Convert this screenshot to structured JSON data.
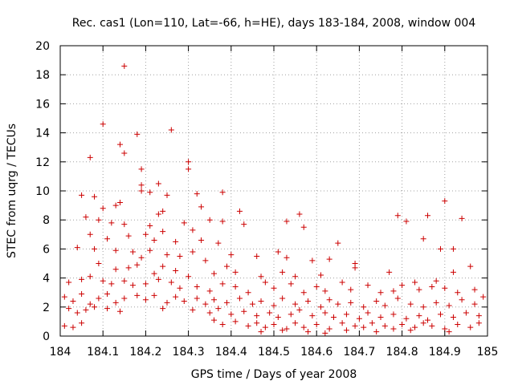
{
  "chart_data": {
    "type": "scatter",
    "title": "Rec. cas1 (Lon=110, Lat=-66, h=HE), days 183-184, 2008, window 004",
    "xlabel": "GPS time / Days of year 2008",
    "ylabel": "STEC from uqrg / TECUs",
    "xlim": [
      184,
      185
    ],
    "ylim": [
      0,
      20
    ],
    "xticks": [
      "184",
      "184.1",
      "184.2",
      "184.3",
      "184.4",
      "184.5",
      "184.6",
      "184.7",
      "184.8",
      "184.9",
      "185"
    ],
    "yticks": [
      "0",
      "2",
      "4",
      "6",
      "8",
      "10",
      "12",
      "14",
      "16",
      "18",
      "20"
    ],
    "grid": true,
    "marker": "+",
    "color": "#cc0000",
    "series": [
      {
        "name": "STEC",
        "points": [
          [
            184.15,
            18.6
          ],
          [
            184.1,
            14.6
          ],
          [
            184.26,
            14.2
          ],
          [
            184.18,
            13.9
          ],
          [
            184.14,
            13.2
          ],
          [
            184.15,
            12.6
          ],
          [
            184.07,
            12.3
          ],
          [
            184.3,
            12.0
          ],
          [
            184.3,
            11.5
          ],
          [
            184.19,
            11.5
          ],
          [
            184.19,
            10.4
          ],
          [
            184.23,
            10.5
          ],
          [
            184.19,
            10.0
          ],
          [
            184.21,
            9.9
          ],
          [
            184.05,
            9.7
          ],
          [
            184.25,
            9.7
          ],
          [
            184.32,
            9.8
          ],
          [
            184.38,
            9.9
          ],
          [
            184.08,
            9.6
          ],
          [
            184.14,
            9.2
          ],
          [
            184.13,
            9.0
          ],
          [
            184.33,
            8.9
          ],
          [
            184.1,
            8.8
          ],
          [
            184.24,
            8.6
          ],
          [
            184.23,
            8.4
          ],
          [
            184.42,
            8.6
          ],
          [
            184.56,
            8.4
          ],
          [
            184.79,
            8.3
          ],
          [
            184.86,
            8.3
          ],
          [
            184.94,
            8.1
          ],
          [
            184.9,
            9.3
          ],
          [
            184.06,
            8.2
          ],
          [
            184.09,
            8.0
          ],
          [
            184.12,
            7.8
          ],
          [
            184.15,
            7.7
          ],
          [
            184.29,
            7.8
          ],
          [
            184.31,
            7.3
          ],
          [
            184.35,
            8.0
          ],
          [
            184.38,
            7.9
          ],
          [
            184.43,
            7.7
          ],
          [
            184.53,
            7.9
          ],
          [
            184.57,
            7.5
          ],
          [
            184.81,
            7.9
          ],
          [
            184.21,
            7.6
          ],
          [
            184.24,
            7.2
          ],
          [
            184.07,
            7.0
          ],
          [
            184.11,
            6.7
          ],
          [
            184.16,
            6.9
          ],
          [
            184.2,
            7.0
          ],
          [
            184.22,
            6.6
          ],
          [
            184.27,
            6.5
          ],
          [
            184.33,
            6.6
          ],
          [
            184.37,
            6.4
          ],
          [
            184.65,
            6.4
          ],
          [
            184.85,
            6.7
          ],
          [
            184.04,
            6.1
          ],
          [
            184.08,
            6.0
          ],
          [
            184.13,
            5.9
          ],
          [
            184.17,
            5.8
          ],
          [
            184.19,
            5.4
          ],
          [
            184.21,
            5.9
          ],
          [
            184.25,
            5.6
          ],
          [
            184.28,
            5.5
          ],
          [
            184.31,
            5.8
          ],
          [
            184.34,
            5.2
          ],
          [
            184.4,
            5.6
          ],
          [
            184.46,
            5.5
          ],
          [
            184.51,
            5.8
          ],
          [
            184.53,
            5.4
          ],
          [
            184.59,
            5.2
          ],
          [
            184.63,
            5.3
          ],
          [
            184.69,
            5.0
          ],
          [
            184.89,
            6.0
          ],
          [
            184.92,
            6.0
          ],
          [
            184.96,
            4.8
          ],
          [
            184.09,
            5.0
          ],
          [
            184.13,
            4.6
          ],
          [
            184.16,
            4.7
          ],
          [
            184.18,
            4.9
          ],
          [
            184.22,
            4.3
          ],
          [
            184.24,
            4.8
          ],
          [
            184.27,
            4.5
          ],
          [
            184.3,
            4.1
          ],
          [
            184.36,
            4.3
          ],
          [
            184.39,
            4.8
          ],
          [
            184.41,
            4.4
          ],
          [
            184.47,
            4.1
          ],
          [
            184.52,
            4.4
          ],
          [
            184.55,
            4.1
          ],
          [
            184.61,
            4.2
          ],
          [
            184.69,
            4.7
          ],
          [
            184.77,
            4.4
          ],
          [
            184.83,
            3.7
          ],
          [
            184.88,
            3.8
          ],
          [
            184.92,
            4.4
          ],
          [
            184.02,
            3.7
          ],
          [
            184.05,
            3.9
          ],
          [
            184.07,
            4.1
          ],
          [
            184.1,
            3.8
          ],
          [
            184.12,
            3.6
          ],
          [
            184.15,
            3.8
          ],
          [
            184.17,
            3.5
          ],
          [
            184.2,
            3.6
          ],
          [
            184.23,
            3.9
          ],
          [
            184.26,
            3.7
          ],
          [
            184.28,
            3.3
          ],
          [
            184.32,
            3.4
          ],
          [
            184.35,
            3.1
          ],
          [
            184.38,
            3.6
          ],
          [
            184.41,
            3.4
          ],
          [
            184.44,
            3.0
          ],
          [
            184.48,
            3.7
          ],
          [
            184.5,
            3.3
          ],
          [
            184.54,
            3.6
          ],
          [
            184.57,
            3.0
          ],
          [
            184.6,
            3.4
          ],
          [
            184.62,
            3.1
          ],
          [
            184.66,
            3.7
          ],
          [
            184.68,
            3.2
          ],
          [
            184.72,
            3.5
          ],
          [
            184.75,
            3.0
          ],
          [
            184.78,
            3.1
          ],
          [
            184.8,
            3.5
          ],
          [
            184.84,
            3.2
          ],
          [
            184.87,
            3.4
          ],
          [
            184.9,
            3.3
          ],
          [
            184.93,
            3.0
          ],
          [
            184.97,
            3.2
          ],
          [
            184.01,
            2.7
          ],
          [
            184.03,
            2.4
          ],
          [
            184.05,
            2.9
          ],
          [
            184.07,
            2.2
          ],
          [
            184.09,
            2.6
          ],
          [
            184.11,
            2.9
          ],
          [
            184.13,
            2.3
          ],
          [
            184.15,
            2.6
          ],
          [
            184.18,
            2.8
          ],
          [
            184.2,
            2.5
          ],
          [
            184.22,
            2.8
          ],
          [
            184.25,
            2.3
          ],
          [
            184.27,
            2.7
          ],
          [
            184.29,
            2.4
          ],
          [
            184.32,
            2.6
          ],
          [
            184.34,
            2.2
          ],
          [
            184.36,
            2.5
          ],
          [
            184.39,
            2.3
          ],
          [
            184.42,
            2.6
          ],
          [
            184.45,
            2.2
          ],
          [
            184.47,
            2.4
          ],
          [
            184.5,
            2.1
          ],
          [
            184.52,
            2.6
          ],
          [
            184.55,
            2.2
          ],
          [
            184.58,
            2.4
          ],
          [
            184.61,
            2.0
          ],
          [
            184.63,
            2.5
          ],
          [
            184.65,
            2.2
          ],
          [
            184.68,
            2.3
          ],
          [
            184.71,
            2.0
          ],
          [
            184.74,
            2.4
          ],
          [
            184.76,
            2.1
          ],
          [
            184.79,
            2.6
          ],
          [
            184.82,
            2.2
          ],
          [
            184.85,
            2.0
          ],
          [
            184.88,
            2.3
          ],
          [
            184.91,
            2.1
          ],
          [
            184.94,
            2.5
          ],
          [
            184.97,
            2.2
          ],
          [
            184.99,
            2.7
          ],
          [
            184.02,
            1.9
          ],
          [
            184.04,
            1.6
          ],
          [
            184.06,
            1.8
          ],
          [
            184.08,
            2.0
          ],
          [
            184.11,
            1.9
          ],
          [
            184.14,
            1.7
          ],
          [
            184.24,
            1.9
          ],
          [
            184.31,
            1.8
          ],
          [
            184.35,
            1.6
          ],
          [
            184.37,
            1.9
          ],
          [
            184.4,
            1.5
          ],
          [
            184.43,
            1.7
          ],
          [
            184.46,
            1.4
          ],
          [
            184.49,
            1.6
          ],
          [
            184.51,
            1.3
          ],
          [
            184.54,
            1.5
          ],
          [
            184.56,
            1.8
          ],
          [
            184.59,
            1.4
          ],
          [
            184.62,
            1.6
          ],
          [
            184.64,
            1.3
          ],
          [
            184.67,
            1.5
          ],
          [
            184.7,
            1.2
          ],
          [
            184.72,
            1.6
          ],
          [
            184.75,
            1.3
          ],
          [
            184.78,
            1.5
          ],
          [
            184.81,
            1.2
          ],
          [
            184.84,
            1.4
          ],
          [
            184.86,
            1.1
          ],
          [
            184.89,
            1.5
          ],
          [
            184.92,
            1.3
          ],
          [
            184.95,
            1.6
          ],
          [
            184.98,
            1.4
          ],
          [
            184.01,
            0.7
          ],
          [
            184.03,
            0.6
          ],
          [
            184.05,
            0.9
          ],
          [
            184.36,
            1.1
          ],
          [
            184.38,
            0.8
          ],
          [
            184.41,
            1.0
          ],
          [
            184.44,
            0.7
          ],
          [
            184.46,
            0.9
          ],
          [
            184.48,
            0.6
          ],
          [
            184.5,
            0.8
          ],
          [
            184.53,
            0.5
          ],
          [
            184.55,
            0.9
          ],
          [
            184.57,
            0.6
          ],
          [
            184.6,
            0.8
          ],
          [
            184.63,
            0.5
          ],
          [
            184.66,
            0.9
          ],
          [
            184.69,
            0.7
          ],
          [
            184.71,
            0.6
          ],
          [
            184.73,
            0.9
          ],
          [
            184.76,
            0.7
          ],
          [
            184.78,
            0.5
          ],
          [
            184.8,
            0.8
          ],
          [
            184.83,
            0.6
          ],
          [
            184.85,
            0.9
          ],
          [
            184.87,
            0.7
          ],
          [
            184.9,
            0.5
          ],
          [
            184.93,
            0.8
          ],
          [
            184.96,
            0.6
          ],
          [
            184.98,
            0.9
          ],
          [
            184.47,
            0.3
          ],
          [
            184.52,
            0.4
          ],
          [
            184.58,
            0.3
          ],
          [
            184.62,
            0.2
          ],
          [
            184.67,
            0.4
          ],
          [
            184.74,
            0.3
          ],
          [
            184.82,
            0.4
          ],
          [
            184.91,
            0.3
          ]
        ]
      }
    ]
  }
}
